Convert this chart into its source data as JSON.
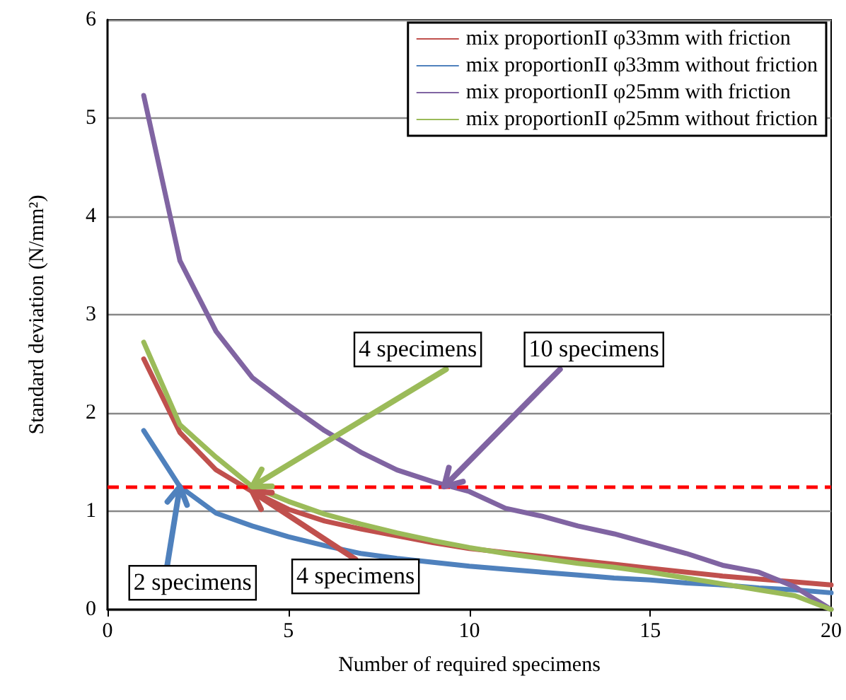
{
  "chart_data": {
    "type": "line",
    "xlabel": "Number of required specimens",
    "ylabel": "Standard deviation (N/mm²)",
    "x": [
      1,
      2,
      3,
      4,
      5,
      6,
      7,
      8,
      9,
      10,
      11,
      12,
      13,
      14,
      15,
      16,
      17,
      18,
      19,
      20
    ],
    "series": [
      {
        "name": "mix proportionII φ33mm with friction",
        "color": "#c0504d",
        "values": [
          2.55,
          1.8,
          1.42,
          1.2,
          1.02,
          0.9,
          0.82,
          0.75,
          0.68,
          0.62,
          0.58,
          0.54,
          0.5,
          0.46,
          0.42,
          0.38,
          0.34,
          0.31,
          0.28,
          0.25
        ]
      },
      {
        "name": "mix proportionII φ33mm without friction",
        "color": "#4f81bd",
        "values": [
          1.82,
          1.25,
          0.98,
          0.85,
          0.74,
          0.65,
          0.57,
          0.52,
          0.48,
          0.44,
          0.41,
          0.38,
          0.35,
          0.32,
          0.3,
          0.27,
          0.25,
          0.22,
          0.2,
          0.17
        ]
      },
      {
        "name": "mix proportionII φ25mm with friction",
        "color": "#8064a2",
        "values": [
          5.23,
          3.55,
          2.83,
          2.36,
          2.08,
          1.82,
          1.6,
          1.42,
          1.3,
          1.2,
          1.03,
          0.95,
          0.85,
          0.77,
          0.67,
          0.57,
          0.45,
          0.38,
          0.23,
          0
        ]
      },
      {
        "name": "mix proportionII φ25mm without friction",
        "color": "#9bbb59",
        "values": [
          2.72,
          1.88,
          1.55,
          1.25,
          1.1,
          0.97,
          0.87,
          0.78,
          0.7,
          0.63,
          0.57,
          0.52,
          0.47,
          0.43,
          0.38,
          0.32,
          0.26,
          0.2,
          0.14,
          0
        ]
      }
    ],
    "xlim": [
      0,
      20
    ],
    "xticks": [
      0,
      5,
      10,
      15,
      20
    ],
    "ylim": [
      0,
      6
    ],
    "yticks": [
      0,
      1,
      2,
      3,
      4,
      5,
      6
    ],
    "ref_lines": [
      {
        "axis": "y",
        "value": 1.25,
        "color": "#ff0000",
        "line_style": "dashed"
      }
    ],
    "annotations": [
      {
        "text": "2 specimens",
        "x": 2,
        "y": 1.25
      },
      {
        "text": "4 specimens",
        "x": 4,
        "y": 1.2
      },
      {
        "text": "4 specimens",
        "x": 4,
        "y": 1.25
      },
      {
        "text": "10 specimens",
        "x": 9.3,
        "y": 1.25
      }
    ],
    "grid": "y",
    "legend": "top right",
    "marker": "none",
    "line_style": "solid"
  }
}
